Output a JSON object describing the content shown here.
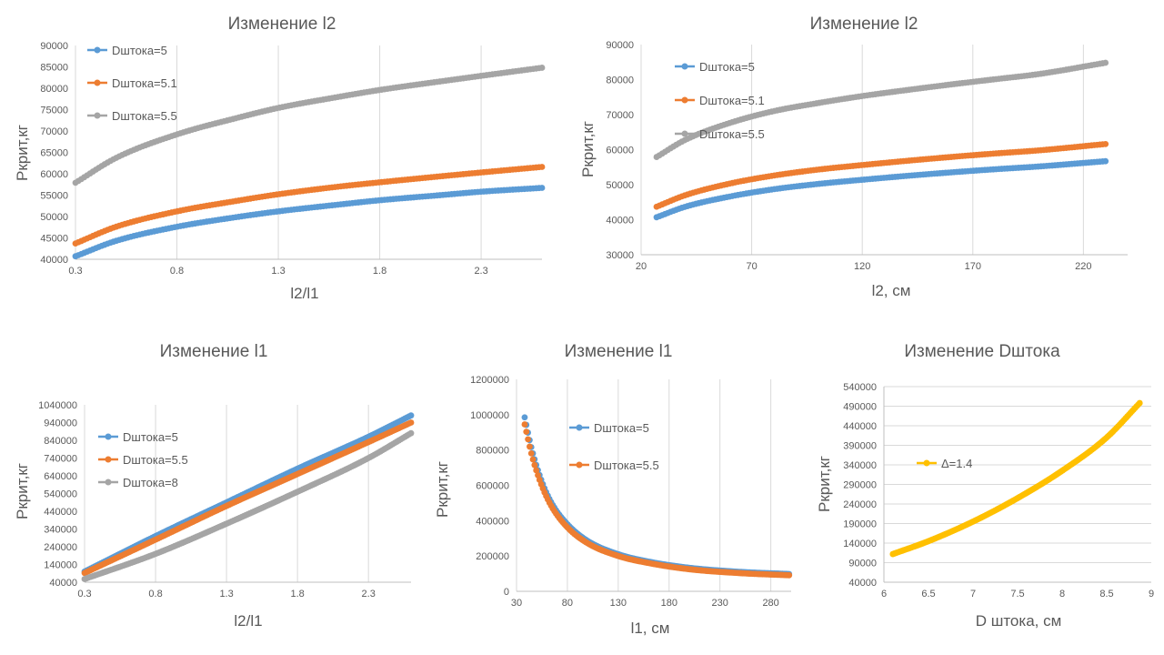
{
  "chart_data": [
    {
      "type": "scatter",
      "title": "Изменение l2",
      "xlabel": "l2/l1",
      "ylabel": "Ркрит,кг",
      "xlim": [
        0.3,
        2.6
      ],
      "ylim": [
        40000,
        90000
      ],
      "xticks": [
        0.3,
        0.8,
        1.3,
        1.8,
        2.3
      ],
      "yticks": [
        40000,
        45000,
        50000,
        55000,
        60000,
        65000,
        70000,
        75000,
        80000,
        85000,
        90000
      ],
      "grid": "vertical",
      "legend": "top-left",
      "series": [
        {
          "name": "Dштока=5",
          "color": "#5B9BD5",
          "x": [
            0.3,
            0.5,
            0.8,
            1.1,
            1.3,
            1.6,
            1.8,
            2.1,
            2.3,
            2.6
          ],
          "y": [
            40700,
            44300,
            47600,
            49900,
            51200,
            52800,
            53800,
            55000,
            55800,
            56700
          ]
        },
        {
          "name": "Dштока=5.1",
          "color": "#ED7D31",
          "x": [
            0.3,
            0.5,
            0.8,
            1.1,
            1.3,
            1.6,
            1.8,
            2.1,
            2.3,
            2.6
          ],
          "y": [
            43700,
            47600,
            51200,
            53700,
            55200,
            57000,
            58000,
            59400,
            60300,
            61600
          ]
        },
        {
          "name": "Dштока=5.5",
          "color": "#A5A5A5",
          "x": [
            0.3,
            0.5,
            0.8,
            1.1,
            1.3,
            1.6,
            1.8,
            2.1,
            2.3,
            2.6
          ],
          "y": [
            57900,
            63700,
            69200,
            73100,
            75400,
            78000,
            79600,
            81600,
            82900,
            84800
          ]
        }
      ]
    },
    {
      "type": "scatter",
      "title": "Изменение l2",
      "xlabel": "l2, см",
      "ylabel": "Ркрит,кг",
      "xlim": [
        20,
        240
      ],
      "ylim": [
        30000,
        90000
      ],
      "xticks": [
        20,
        70,
        120,
        170,
        220
      ],
      "yticks": [
        30000,
        40000,
        50000,
        60000,
        70000,
        80000,
        90000
      ],
      "grid": "vertical",
      "legend": "top-left",
      "series": [
        {
          "name": "Dштока=5",
          "color": "#5B9BD5",
          "x": [
            27,
            40,
            60,
            80,
            100,
            120,
            140,
            160,
            180,
            200,
            230
          ],
          "y": [
            40700,
            43700,
            46600,
            48700,
            50200,
            51400,
            52500,
            53500,
            54400,
            55200,
            56700
          ]
        },
        {
          "name": "Dштока=5.1",
          "color": "#ED7D31",
          "x": [
            27,
            40,
            60,
            80,
            100,
            120,
            140,
            160,
            180,
            200,
            230
          ],
          "y": [
            43700,
            47000,
            50300,
            52600,
            54300,
            55600,
            56800,
            57900,
            58900,
            59800,
            61600
          ]
        },
        {
          "name": "Dштока=5.5",
          "color": "#A5A5A5",
          "x": [
            27,
            40,
            60,
            80,
            100,
            120,
            140,
            160,
            180,
            200,
            230
          ],
          "y": [
            57900,
            62800,
            67600,
            71000,
            73300,
            75300,
            77000,
            78600,
            80100,
            81600,
            84800
          ]
        }
      ]
    },
    {
      "type": "scatter",
      "title": "Изменение l1",
      "xlabel": "l2/l1",
      "ylabel": "Ркрит,кг",
      "xlim": [
        0.3,
        2.6
      ],
      "ylim": [
        40000,
        1040000
      ],
      "xticks": [
        0.3,
        0.8,
        1.3,
        1.8,
        2.3
      ],
      "yticks": [
        40000,
        140000,
        240000,
        340000,
        440000,
        540000,
        640000,
        740000,
        840000,
        940000,
        1040000
      ],
      "grid": "vertical",
      "legend": "top-left",
      "series": [
        {
          "name": "Dштока=5",
          "color": "#5B9BD5",
          "x": [
            0.3,
            0.8,
            1.3,
            1.8,
            2.3,
            2.6
          ],
          "y": [
            100000,
            300000,
            490000,
            680000,
            860000,
            980000
          ]
        },
        {
          "name": "Dштока=5.5",
          "color": "#ED7D31",
          "x": [
            0.3,
            0.8,
            1.3,
            1.8,
            2.3,
            2.6
          ],
          "y": [
            92000,
            280000,
            470000,
            650000,
            830000,
            940000
          ]
        },
        {
          "name": "Dштока=8",
          "color": "#A5A5A5",
          "x": [
            0.3,
            0.8,
            1.3,
            1.8,
            2.3,
            2.6
          ],
          "y": [
            58000,
            200000,
            370000,
            550000,
            740000,
            880000
          ]
        }
      ]
    },
    {
      "type": "scatter",
      "title": "Изменение l1",
      "xlabel": "l1, см",
      "ylabel": "Ркрит,кг",
      "xlim": [
        30,
        300
      ],
      "ylim": [
        0,
        1200000
      ],
      "xticks": [
        30,
        80,
        130,
        180,
        230,
        280
      ],
      "yticks": [
        0,
        200000,
        400000,
        600000,
        800000,
        1000000,
        1200000
      ],
      "grid": "vertical",
      "legend": "top-left",
      "series": [
        {
          "name": "Dштока=5",
          "color": "#5B9BD5",
          "x": [
            38,
            45,
            55,
            65,
            80,
            100,
            130,
            160,
            200,
            250,
            298
          ],
          "y": [
            985000,
            805000,
            620000,
            495000,
            380000,
            285000,
            210000,
            168000,
            133000,
            110000,
            98000
          ]
        },
        {
          "name": "Dштока=5.5",
          "color": "#ED7D31",
          "x": [
            38,
            45,
            55,
            65,
            80,
            100,
            130,
            160,
            200,
            250,
            298
          ],
          "y": [
            945000,
            770000,
            595000,
            475000,
            362000,
            272000,
            200000,
            160000,
            125000,
            103000,
            91000
          ]
        }
      ]
    },
    {
      "type": "scatter",
      "title": "Изменение Dштока",
      "xlabel": "D штока, см",
      "ylabel": "Ркрит,кг",
      "xlim": [
        6,
        9
      ],
      "ylim": [
        40000,
        540000
      ],
      "xticks": [
        6,
        6.5,
        7,
        7.5,
        8,
        8.5,
        9
      ],
      "yticks": [
        40000,
        90000,
        140000,
        190000,
        240000,
        290000,
        340000,
        390000,
        440000,
        490000,
        540000
      ],
      "grid": "horizontal",
      "legend": "left",
      "series": [
        {
          "name": "Δ=1.4",
          "color": "#FFC000",
          "x": [
            6.1,
            6.5,
            7.0,
            7.5,
            8.0,
            8.5,
            8.87
          ],
          "y": [
            112000,
            145000,
            195000,
            255000,
            325000,
            410000,
            498000
          ]
        }
      ]
    }
  ]
}
